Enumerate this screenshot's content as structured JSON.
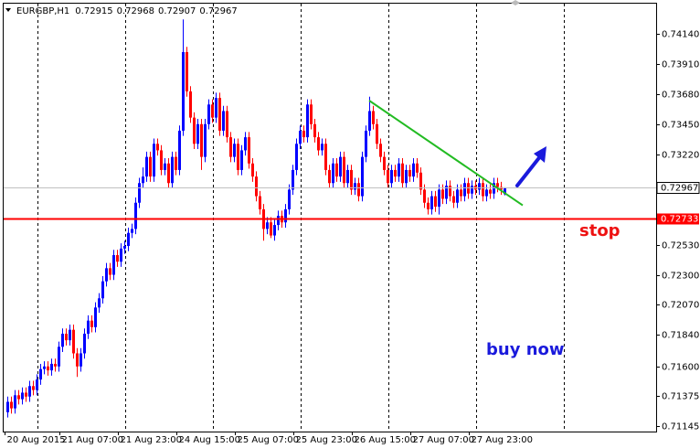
{
  "chart_data": {
    "type": "candlestick",
    "symbol": "EURGBP,H1",
    "up_color": "#0000ff",
    "down_color": "#ff0000",
    "ylim": [
      0.7437,
      0.71103
    ],
    "yticks": [
      {
        "value": 0.7414,
        "label": "0.74140"
      },
      {
        "value": 0.7391,
        "label": "0.73910"
      },
      {
        "value": 0.7368,
        "label": "0.73680"
      },
      {
        "value": 0.7345,
        "label": "0.73450"
      },
      {
        "value": 0.7322,
        "label": "0.73220"
      },
      {
        "value": 0.7253,
        "label": "0.72530"
      },
      {
        "value": 0.723,
        "label": "0.72300"
      },
      {
        "value": 0.7207,
        "label": "0.72070"
      },
      {
        "value": 0.7184,
        "label": "0.71840"
      },
      {
        "value": 0.716,
        "label": "0.71600"
      },
      {
        "value": 0.71375,
        "label": "0.71375"
      },
      {
        "value": 0.71145,
        "label": "0.71145"
      }
    ],
    "xticks": [
      {
        "value": 0,
        "label": "20 Aug 2015"
      },
      {
        "value": 15,
        "label": "21 Aug 07:00"
      },
      {
        "value": 31,
        "label": "21 Aug 23:00"
      },
      {
        "value": 47,
        "label": "24 Aug 15:00"
      },
      {
        "value": 63,
        "label": "25 Aug 07:00"
      },
      {
        "value": 79,
        "label": "25 Aug 23:00"
      },
      {
        "value": 95,
        "label": "26 Aug 15:00"
      },
      {
        "value": 111,
        "label": "27 Aug 07:00"
      },
      {
        "value": 127,
        "label": "27 Aug 23:00"
      }
    ],
    "stop_line": {
      "value": 0.72733,
      "color": "#ff0000",
      "label": "stop"
    },
    "trendline": {
      "x": [
        99,
        141
      ],
      "y": [
        0.7363,
        0.7283
      ],
      "color": "#22bb22"
    },
    "annotation": "buy now",
    "ohlc": [
      [
        0.7125,
        0.7137,
        0.7121,
        0.7133
      ],
      [
        0.7133,
        0.7137,
        0.7124,
        0.7128
      ],
      [
        0.7128,
        0.7142,
        0.7124,
        0.7138
      ],
      [
        0.7138,
        0.7142,
        0.7131,
        0.7135
      ],
      [
        0.7135,
        0.7144,
        0.7131,
        0.714
      ],
      [
        0.714,
        0.7144,
        0.7133,
        0.7137
      ],
      [
        0.7137,
        0.7149,
        0.7133,
        0.7145
      ],
      [
        0.7145,
        0.7149,
        0.7138,
        0.7142
      ],
      [
        0.7142,
        0.7154,
        0.7138,
        0.715
      ],
      [
        0.715,
        0.7162,
        0.7146,
        0.7158
      ],
      [
        0.7158,
        0.7164,
        0.7154,
        0.716
      ],
      [
        0.716,
        0.7164,
        0.7153,
        0.7157
      ],
      [
        0.7157,
        0.7166,
        0.7153,
        0.7162
      ],
      [
        0.7162,
        0.7166,
        0.7156,
        0.716
      ],
      [
        0.716,
        0.7179,
        0.7156,
        0.7175
      ],
      [
        0.7175,
        0.7189,
        0.7171,
        0.7185
      ],
      [
        0.7185,
        0.7189,
        0.7176,
        0.718
      ],
      [
        0.718,
        0.7192,
        0.7176,
        0.7188
      ],
      [
        0.7188,
        0.7192,
        0.7166,
        0.717
      ],
      [
        0.717,
        0.7174,
        0.7152,
        0.716
      ],
      [
        0.716,
        0.7174,
        0.7156,
        0.717
      ],
      [
        0.717,
        0.7189,
        0.7166,
        0.7185
      ],
      [
        0.7185,
        0.7199,
        0.7181,
        0.7195
      ],
      [
        0.7195,
        0.7199,
        0.7186,
        0.719
      ],
      [
        0.719,
        0.7209,
        0.7186,
        0.7205
      ],
      [
        0.7205,
        0.7216,
        0.7201,
        0.7212
      ],
      [
        0.7212,
        0.7229,
        0.7208,
        0.7225
      ],
      [
        0.7225,
        0.7239,
        0.7221,
        0.7235
      ],
      [
        0.7235,
        0.7239,
        0.7226,
        0.723
      ],
      [
        0.723,
        0.7249,
        0.7226,
        0.7245
      ],
      [
        0.7245,
        0.7249,
        0.7236,
        0.724
      ],
      [
        0.724,
        0.7254,
        0.7236,
        0.725
      ],
      [
        0.725,
        0.7256,
        0.7246,
        0.7252
      ],
      [
        0.7252,
        0.7266,
        0.7248,
        0.7262
      ],
      [
        0.7262,
        0.7269,
        0.7258,
        0.7265
      ],
      [
        0.7265,
        0.7289,
        0.7261,
        0.7285
      ],
      [
        0.7285,
        0.7304,
        0.7281,
        0.73
      ],
      [
        0.73,
        0.7312,
        0.7296,
        0.7305
      ],
      [
        0.7305,
        0.7324,
        0.7301,
        0.732
      ],
      [
        0.732,
        0.7324,
        0.7301,
        0.7305
      ],
      [
        0.7305,
        0.7334,
        0.7301,
        0.733
      ],
      [
        0.733,
        0.7334,
        0.7321,
        0.7325
      ],
      [
        0.7325,
        0.7329,
        0.7306,
        0.731
      ],
      [
        0.731,
        0.7319,
        0.7306,
        0.7315
      ],
      [
        0.7315,
        0.7319,
        0.7296,
        0.73
      ],
      [
        0.73,
        0.7324,
        0.7296,
        0.732
      ],
      [
        0.732,
        0.7324,
        0.7306,
        0.731
      ],
      [
        0.731,
        0.7344,
        0.7306,
        0.734
      ],
      [
        0.734,
        0.7425,
        0.7336,
        0.74
      ],
      [
        0.74,
        0.7404,
        0.7366,
        0.737
      ],
      [
        0.737,
        0.7374,
        0.7346,
        0.735
      ],
      [
        0.735,
        0.7354,
        0.7326,
        0.733
      ],
      [
        0.733,
        0.7349,
        0.7326,
        0.7345
      ],
      [
        0.7345,
        0.7349,
        0.731,
        0.732
      ],
      [
        0.732,
        0.7349,
        0.7316,
        0.7345
      ],
      [
        0.7345,
        0.7364,
        0.7341,
        0.736
      ],
      [
        0.736,
        0.7364,
        0.7346,
        0.735
      ],
      [
        0.735,
        0.7369,
        0.7346,
        0.7365
      ],
      [
        0.7365,
        0.7369,
        0.7336,
        0.734
      ],
      [
        0.734,
        0.7359,
        0.7336,
        0.7355
      ],
      [
        0.7355,
        0.7359,
        0.7331,
        0.7335
      ],
      [
        0.7335,
        0.7339,
        0.7316,
        0.732
      ],
      [
        0.732,
        0.7334,
        0.7316,
        0.733
      ],
      [
        0.733,
        0.7334,
        0.7306,
        0.731
      ],
      [
        0.731,
        0.7329,
        0.7306,
        0.7325
      ],
      [
        0.7325,
        0.7339,
        0.7321,
        0.7335
      ],
      [
        0.7335,
        0.7339,
        0.7311,
        0.7315
      ],
      [
        0.7315,
        0.7319,
        0.7301,
        0.7305
      ],
      [
        0.7305,
        0.7309,
        0.7286,
        0.729
      ],
      [
        0.729,
        0.7294,
        0.7276,
        0.728
      ],
      [
        0.728,
        0.7284,
        0.7256,
        0.7265
      ],
      [
        0.7265,
        0.7274,
        0.7261,
        0.727
      ],
      [
        0.727,
        0.7274,
        0.7258,
        0.726
      ],
      [
        0.726,
        0.7272,
        0.7256,
        0.7268
      ],
      [
        0.7268,
        0.7279,
        0.7264,
        0.7275
      ],
      [
        0.7275,
        0.7279,
        0.7266,
        0.727
      ],
      [
        0.727,
        0.7284,
        0.7266,
        0.728
      ],
      [
        0.728,
        0.7299,
        0.7276,
        0.7295
      ],
      [
        0.7295,
        0.7314,
        0.7291,
        0.731
      ],
      [
        0.731,
        0.7334,
        0.7306,
        0.733
      ],
      [
        0.733,
        0.7344,
        0.7326,
        0.734
      ],
      [
        0.734,
        0.7344,
        0.7331,
        0.7335
      ],
      [
        0.7335,
        0.7364,
        0.7331,
        0.736
      ],
      [
        0.736,
        0.7364,
        0.7341,
        0.7345
      ],
      [
        0.7345,
        0.7349,
        0.7331,
        0.7335
      ],
      [
        0.7335,
        0.7339,
        0.7321,
        0.7325
      ],
      [
        0.7325,
        0.7334,
        0.7321,
        0.733
      ],
      [
        0.733,
        0.7334,
        0.7306,
        0.731
      ],
      [
        0.731,
        0.7314,
        0.7296,
        0.73
      ],
      [
        0.73,
        0.7319,
        0.7296,
        0.7315
      ],
      [
        0.7315,
        0.7319,
        0.7301,
        0.7305
      ],
      [
        0.7305,
        0.7324,
        0.7301,
        0.732
      ],
      [
        0.732,
        0.7324,
        0.7296,
        0.73
      ],
      [
        0.73,
        0.7314,
        0.7296,
        0.731
      ],
      [
        0.731,
        0.7314,
        0.7291,
        0.7295
      ],
      [
        0.7295,
        0.7304,
        0.7291,
        0.73
      ],
      [
        0.73,
        0.7304,
        0.7286,
        0.729
      ],
      [
        0.729,
        0.7324,
        0.7286,
        0.732
      ],
      [
        0.732,
        0.7344,
        0.7316,
        0.734
      ],
      [
        0.734,
        0.7366,
        0.7336,
        0.7355
      ],
      [
        0.7355,
        0.7359,
        0.7341,
        0.7345
      ],
      [
        0.7345,
        0.7349,
        0.7326,
        0.733
      ],
      [
        0.733,
        0.7334,
        0.7316,
        0.732
      ],
      [
        0.732,
        0.7324,
        0.7306,
        0.731
      ],
      [
        0.731,
        0.7314,
        0.7296,
        0.73
      ],
      [
        0.73,
        0.7314,
        0.7296,
        0.731
      ],
      [
        0.731,
        0.7314,
        0.7301,
        0.7305
      ],
      [
        0.7305,
        0.7319,
        0.7301,
        0.7315
      ],
      [
        0.7315,
        0.7319,
        0.7296,
        0.73
      ],
      [
        0.73,
        0.7314,
        0.7296,
        0.731
      ],
      [
        0.731,
        0.7314,
        0.7301,
        0.7305
      ],
      [
        0.7305,
        0.7319,
        0.7301,
        0.7315
      ],
      [
        0.7315,
        0.7319,
        0.7304,
        0.7308
      ],
      [
        0.7308,
        0.7312,
        0.7291,
        0.7295
      ],
      [
        0.7295,
        0.7299,
        0.7281,
        0.7285
      ],
      [
        0.7285,
        0.7289,
        0.7276,
        0.728
      ],
      [
        0.728,
        0.7294,
        0.7276,
        0.729
      ],
      [
        0.729,
        0.7294,
        0.7278,
        0.7282
      ],
      [
        0.7282,
        0.7299,
        0.7276,
        0.7295
      ],
      [
        0.7295,
        0.7299,
        0.7284,
        0.7288
      ],
      [
        0.7288,
        0.7302,
        0.7284,
        0.7298
      ],
      [
        0.7298,
        0.7302,
        0.7286,
        0.729
      ],
      [
        0.729,
        0.7294,
        0.7281,
        0.7285
      ],
      [
        0.7285,
        0.7299,
        0.7281,
        0.7295
      ],
      [
        0.7295,
        0.7299,
        0.7286,
        0.729
      ],
      [
        0.729,
        0.7304,
        0.7286,
        0.73
      ],
      [
        0.73,
        0.7304,
        0.7288,
        0.7292
      ],
      [
        0.7292,
        0.7302,
        0.7288,
        0.7298
      ],
      [
        0.7298,
        0.7302,
        0.7291,
        0.7295
      ],
      [
        0.7295,
        0.7304,
        0.7291,
        0.73
      ],
      [
        0.73,
        0.7304,
        0.7286,
        0.729
      ],
      [
        0.729,
        0.7299,
        0.7286,
        0.7295
      ],
      [
        0.7295,
        0.7299,
        0.7288,
        0.7292
      ],
      [
        0.7292,
        0.7304,
        0.7288,
        0.73
      ],
      [
        0.73,
        0.7304,
        0.7293,
        0.7297
      ],
      [
        0.7297,
        0.7301,
        0.7291,
        0.7295
      ],
      [
        0.72915,
        0.72968,
        0.72907,
        0.72967
      ]
    ]
  }
}
